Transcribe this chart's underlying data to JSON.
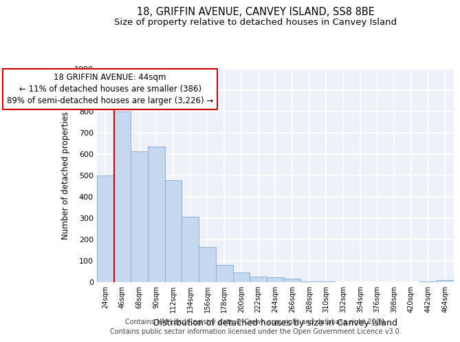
{
  "title": "18, GRIFFIN AVENUE, CANVEY ISLAND, SS8 8BE",
  "subtitle": "Size of property relative to detached houses in Canvey Island",
  "xlabel": "Distribution of detached houses by size in Canvey Island",
  "ylabel": "Number of detached properties",
  "categories": [
    "24sqm",
    "46sqm",
    "68sqm",
    "90sqm",
    "112sqm",
    "134sqm",
    "156sqm",
    "178sqm",
    "200sqm",
    "222sqm",
    "244sqm",
    "266sqm",
    "288sqm",
    "310sqm",
    "332sqm",
    "354sqm",
    "376sqm",
    "398sqm",
    "420sqm",
    "442sqm",
    "464sqm"
  ],
  "values": [
    500,
    800,
    610,
    635,
    475,
    305,
    163,
    78,
    43,
    25,
    20,
    13,
    3,
    3,
    0,
    0,
    0,
    0,
    0,
    3,
    8
  ],
  "bar_color": "#c5d8f0",
  "bar_edge_color": "#8ab0d8",
  "annotation_line_color": "#cc0000",
  "annotation_box_text": "18 GRIFFIN AVENUE: 44sqm\n← 11% of detached houses are smaller (386)\n89% of semi-detached houses are larger (3,226) →",
  "annotation_box_color": "#cc0000",
  "ylim": [
    0,
    1000
  ],
  "background_color": "#eef2f8",
  "grid_color": "#ffffff",
  "footer_line1": "Contains HM Land Registry data © Crown copyright and database right 2024.",
  "footer_line2": "Contains public sector information licensed under the Open Government Licence v3.0.",
  "title_fontsize": 10.5,
  "subtitle_fontsize": 9.5,
  "xlabel_fontsize": 9,
  "ylabel_fontsize": 8.5,
  "annotation_fontsize": 8.5,
  "tick_fontsize": 8,
  "footer_fontsize": 7
}
